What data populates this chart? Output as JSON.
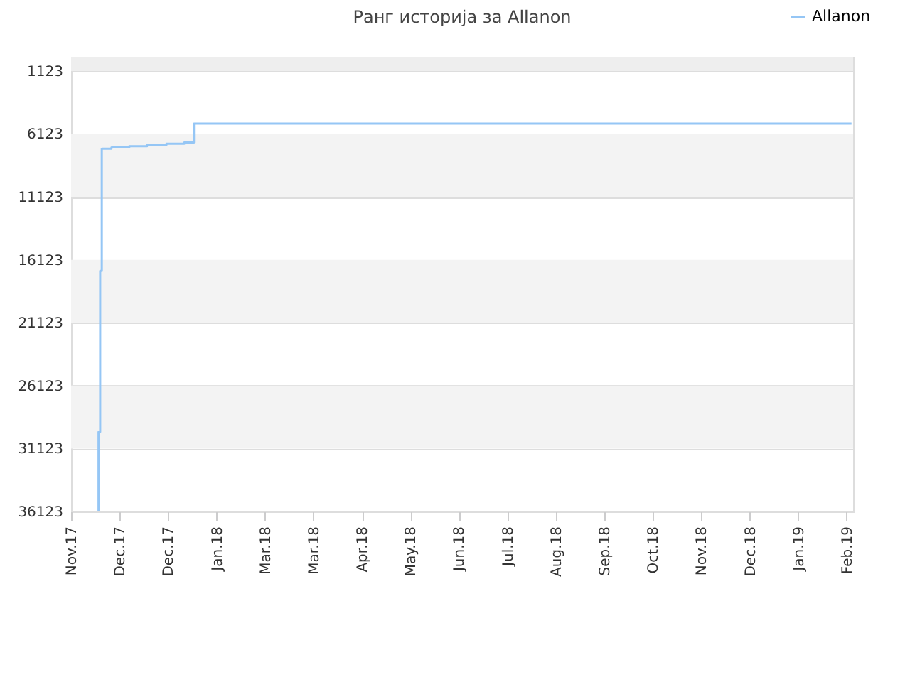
{
  "chart_data": {
    "type": "step",
    "title": "Ранг историја за Allanon",
    "legend": "top right",
    "grid": "y",
    "x": [
      "2017-11-18",
      "2017-11-18",
      "2017-11-19",
      "2017-11-20",
      "2017-11-26",
      "2017-12-07",
      "2017-12-18",
      "2017-12-30",
      "2018-01-10",
      "2018-01-16",
      "2019-02-27"
    ],
    "series": [
      {
        "name": "Allanon",
        "color": "#95c6f5",
        "values": [
          36123,
          29800,
          17000,
          7300,
          7200,
          7100,
          7000,
          6900,
          6800,
          5300,
          5300
        ]
      }
    ],
    "ylim": [
      36123,
      0
    ],
    "yticks": [
      1123,
      6123,
      11123,
      16123,
      21123,
      26123,
      31123,
      36123
    ],
    "xlim": [
      "2017-11-01",
      "2019-02-28"
    ],
    "xticks": [
      {
        "value": "2017-11-01",
        "label": "Nov.17"
      },
      {
        "value": "2017-12-01",
        "label": "Dec.17"
      },
      {
        "value": "2017-12-31",
        "label": "Dec.17"
      },
      {
        "value": "2018-01-30",
        "label": "Jan.18"
      },
      {
        "value": "2018-03-01",
        "label": "Mar.18"
      },
      {
        "value": "2018-03-31",
        "label": "Mar.18"
      },
      {
        "value": "2018-04-30",
        "label": "Apr.18"
      },
      {
        "value": "2018-05-30",
        "label": "May.18"
      },
      {
        "value": "2018-06-29",
        "label": "Jun.18"
      },
      {
        "value": "2018-07-29",
        "label": "Jul.18"
      },
      {
        "value": "2018-08-28",
        "label": "Aug.18"
      },
      {
        "value": "2018-09-27",
        "label": "Sep.18"
      },
      {
        "value": "2018-10-27",
        "label": "Oct.18"
      },
      {
        "value": "2018-11-26",
        "label": "Nov.18"
      },
      {
        "value": "2018-12-26",
        "label": "Dec.18"
      },
      {
        "value": "2019-01-25",
        "label": "Jan.19"
      },
      {
        "value": "2019-02-24",
        "label": "Feb.19"
      }
    ],
    "bands": [
      {
        "axis": "y",
        "from": 0,
        "to": 1123,
        "color": "#eeeeee"
      },
      {
        "axis": "y",
        "from": 6123,
        "to": 11123,
        "color": "#f3f3f3"
      },
      {
        "axis": "y",
        "from": 16123,
        "to": 21123,
        "color": "#f3f3f3"
      },
      {
        "axis": "y",
        "from": 26123,
        "to": 31123,
        "color": "#f3f3f3"
      }
    ]
  }
}
